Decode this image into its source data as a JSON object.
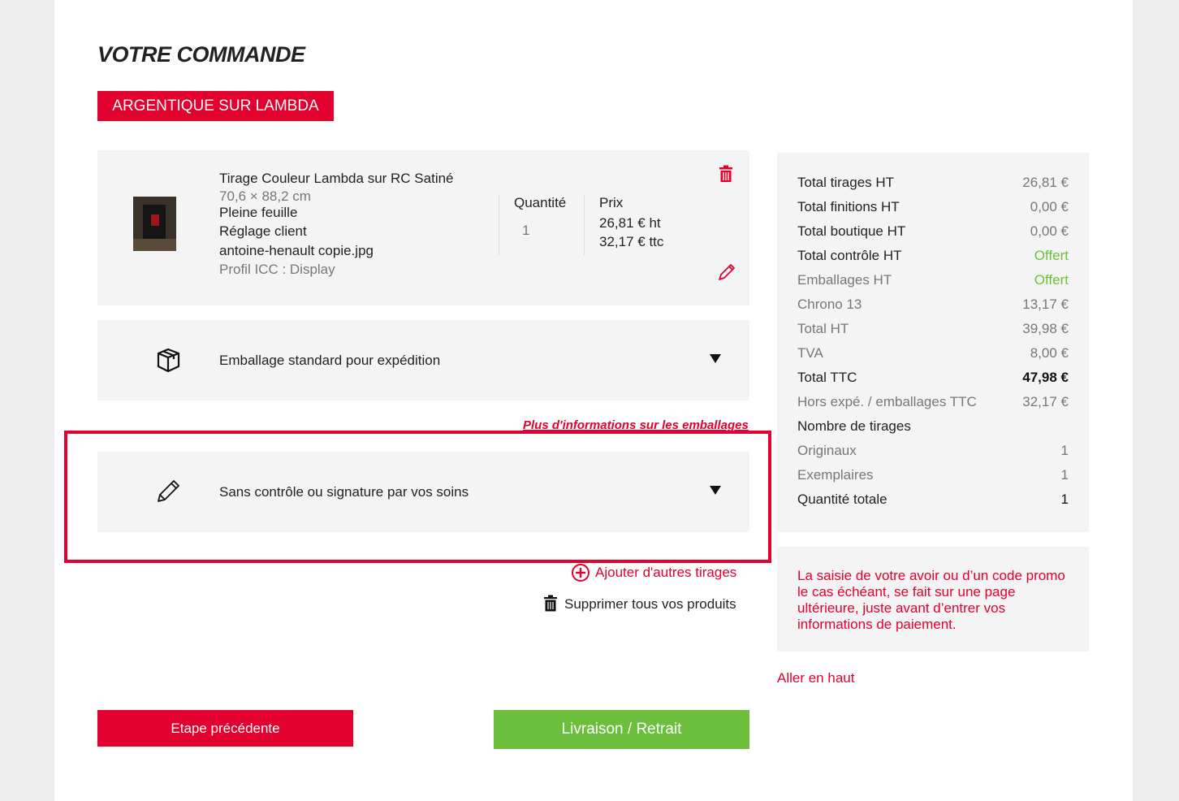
{
  "header": {
    "title": "VOTRE COMMANDE",
    "tab": "ARGENTIQUE SUR LAMBDA"
  },
  "product": {
    "name": "Tirage Couleur Lambda sur RC Satiné",
    "size": "70,6 × 88,2 cm",
    "format": "Pleine feuille",
    "setting": "Réglage client",
    "file": "antoine-henault copie.jpg",
    "profile": "Profil ICC : Display",
    "quantity_label": "Quantité",
    "quantity": "1",
    "price_label": "Prix",
    "price_ht": "26,81 € ht",
    "price_ttc": "32,17 € ttc"
  },
  "packaging": {
    "label": "Emballage standard pour expédition",
    "info_link": "Plus d'informations sur les emballages"
  },
  "control": {
    "label": "Sans contrôle ou signature par vos soins"
  },
  "actions": {
    "add": "Ajouter d'autres tirages",
    "delete_all": "Supprimer tous vos produits"
  },
  "summary": {
    "rows": [
      {
        "label": "Total tirages HT",
        "value": "26,81 €"
      },
      {
        "label": "Total finitions HT",
        "value": "0,00 €"
      },
      {
        "label": "Total boutique HT",
        "value": "0,00 €"
      },
      {
        "label": "Total contrôle HT",
        "value": "Offert"
      },
      {
        "label": "Emballages HT",
        "value": "Offert"
      },
      {
        "label": "Chrono 13",
        "value": "13,17 €"
      },
      {
        "label": "Total HT",
        "value": "39,98 €"
      },
      {
        "label": "TVA",
        "value": "8,00 €"
      },
      {
        "label": "Total TTC",
        "value": "47,98 €"
      },
      {
        "label": "Hors expé. / emballages TTC",
        "value": "32,17 €"
      },
      {
        "label": "Nombre de tirages"
      },
      {
        "label": "Originaux",
        "value": "1"
      },
      {
        "label": "Exemplaires",
        "value": "1"
      },
      {
        "label": "Quantité totale",
        "value": "1"
      }
    ],
    "promo_note": "La saisie de votre avoir ou d’un code promo le cas échéant, se fait sur une page ultérieure, juste avant d’entrer vos informations de paiement.",
    "top_link": "Aller en haut"
  },
  "buttons": {
    "previous": "Etape précédente",
    "next": "Livraison / Retrait"
  }
}
